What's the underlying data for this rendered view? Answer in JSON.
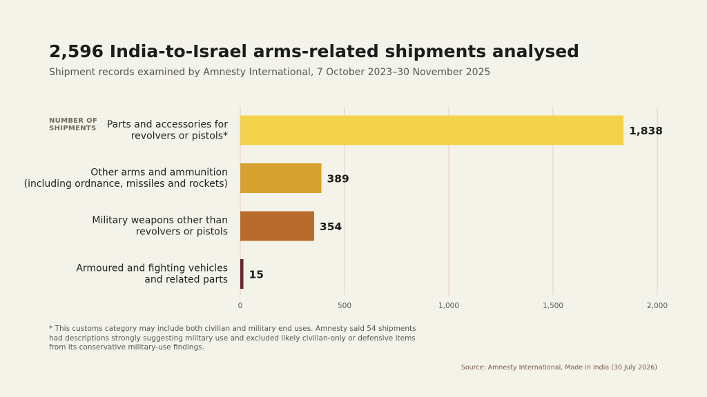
{
  "header": {
    "title": "2,596 India-to-Israel arms-related shipments analysed",
    "subtitle": "Shipment records examined by Amnesty International, 7 October 2023–30 November 2025"
  },
  "chart_data": {
    "type": "bar",
    "orientation": "horizontal",
    "y_header": [
      "NUMBER OF",
      "SHIPMENTS"
    ],
    "categories": [
      [
        "Parts and accessories for",
        "revolvers or pistols*"
      ],
      [
        "Other arms and ammunition",
        "(including ordnance, missiles and rockets)"
      ],
      [
        "Military weapons other than",
        "revolvers or pistols"
      ],
      [
        "Armoured and fighting vehicles",
        "and related parts"
      ]
    ],
    "values": [
      1838,
      389,
      354,
      15
    ],
    "value_labels": [
      "1,838",
      "389",
      "354",
      "15"
    ],
    "colors": [
      "#f4d24b",
      "#d6a12e",
      "#b96a2d",
      "#6b2530"
    ],
    "xlim": [
      0,
      2000
    ],
    "x_ticks": [
      0,
      500,
      1000,
      1500,
      2000
    ],
    "x_tick_labels": [
      "0",
      "500",
      "1,000",
      "1,500",
      "2,000"
    ],
    "grid": true
  },
  "footnote": "* This customs category may include both civilian and military end uses. Amnesty said 54 shipments had descriptions strongly suggesting military use and excluded likely civilian-only or defensive items from its conservative military-use findings.",
  "source": "Source: Amnesty International, Made in India (30 July 2026)"
}
